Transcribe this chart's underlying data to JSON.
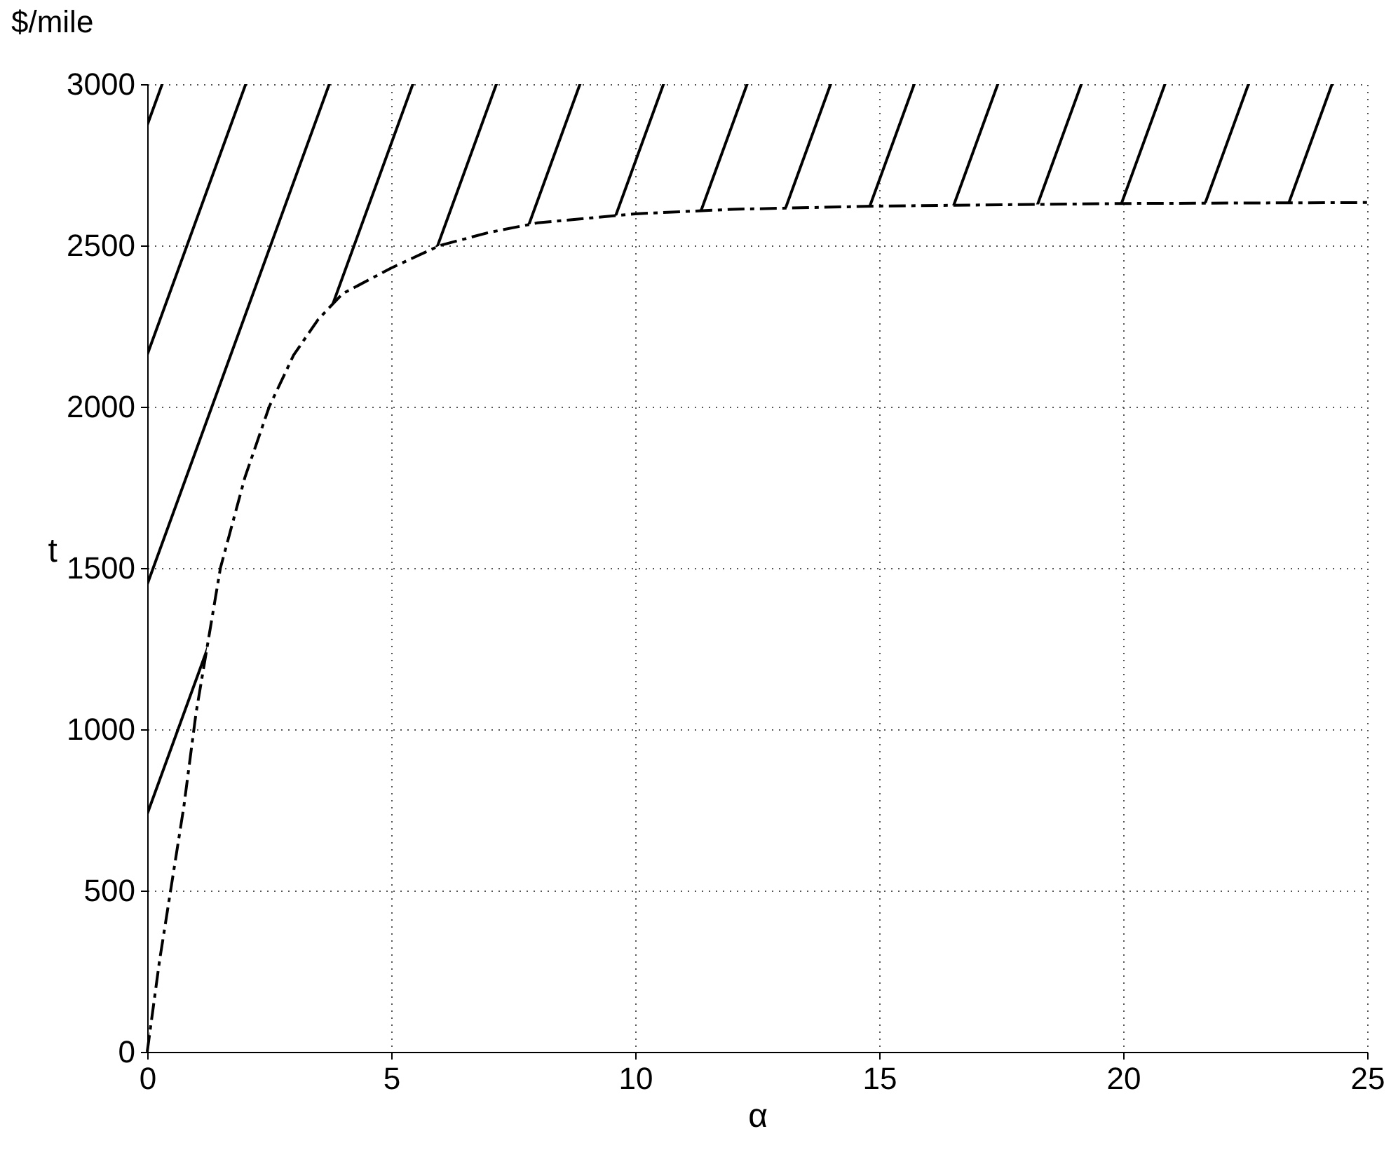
{
  "chart_data": {
    "type": "line",
    "xlabel": "α",
    "ylabel": "t",
    "annotations": [
      "$/mile"
    ],
    "x": [
      0,
      0.25,
      0.5,
      0.75,
      1,
      1.5,
      2,
      2.5,
      3,
      3.5,
      4,
      5,
      6,
      7,
      8,
      10,
      12,
      15,
      20,
      25
    ],
    "series": [
      {
        "color": "#000000",
        "values": [
          0,
          280,
          520,
          760,
          1050,
          1500,
          1780,
          2000,
          2160,
          2270,
          2350,
          2430,
          2500,
          2540,
          2570,
          2598,
          2612,
          2622,
          2630,
          2633
        ],
        "lower": [
          0,
          280,
          520,
          760,
          1050,
          1500,
          1780,
          2000,
          2160,
          2270,
          2350,
          2430,
          2500,
          2540,
          2570,
          2598,
          2612,
          2622,
          2630,
          2633
        ],
        "upper": [
          3000,
          3000,
          3000,
          3000,
          3000,
          3000,
          3000,
          3000,
          3000,
          3000,
          3000,
          3000,
          3000,
          3000,
          3000,
          3000,
          3000,
          3000,
          3000,
          3000
        ]
      }
    ],
    "xlim": [
      0,
      25
    ],
    "xticks": [
      0,
      5,
      10,
      15,
      20,
      25
    ],
    "ylim": [
      0,
      3000
    ],
    "yticks": [
      0,
      500,
      1000,
      1500,
      2000,
      2500,
      3000
    ],
    "grid": true,
    "marker": "none",
    "line_style": "dashed"
  }
}
